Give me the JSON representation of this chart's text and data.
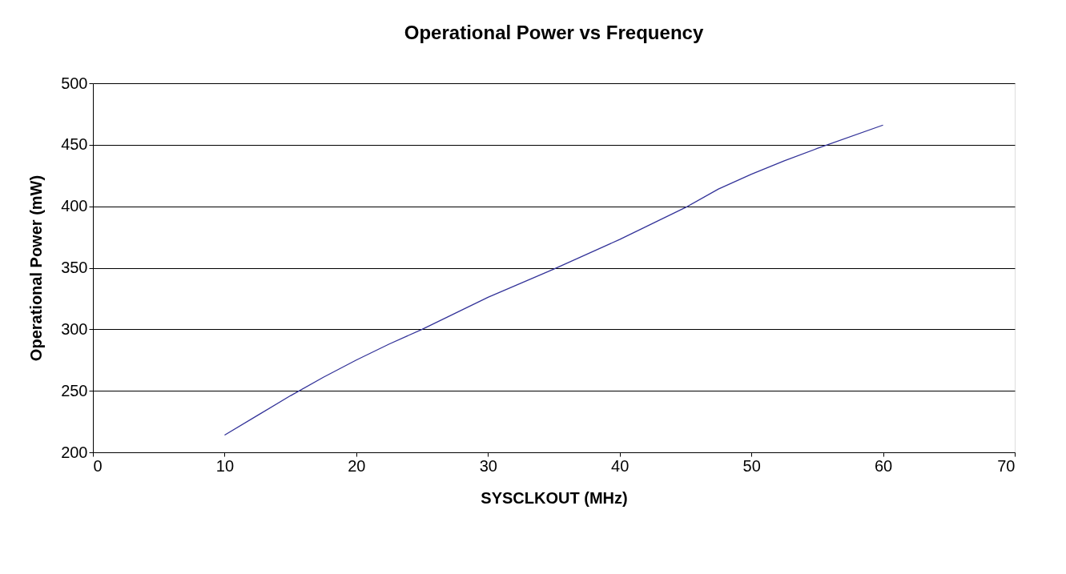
{
  "chart_data": {
    "type": "line",
    "title": "Operational Power vs Frequency",
    "xlabel": "SYSCLKOUT (MHz)",
    "ylabel": "Operational Power (mW)",
    "x": [
      10,
      12.5,
      15,
      17.5,
      20,
      22.5,
      25,
      30,
      35,
      37.5,
      40,
      45,
      47.5,
      50,
      52.5,
      55,
      60
    ],
    "series": [
      {
        "color": "#333399",
        "values": [
          214,
          230,
          246,
          261,
          275,
          288,
          300,
          326,
          349,
          361,
          373,
          399,
          414,
          426,
          437,
          447,
          466
        ]
      }
    ],
    "xlim": [
      0,
      70
    ],
    "xticks": [
      0,
      10,
      20,
      30,
      40,
      50,
      60,
      70
    ],
    "ylim": [
      200,
      500
    ],
    "yticks": [
      200,
      250,
      300,
      350,
      400,
      450,
      500
    ],
    "grid": "y",
    "legend": false,
    "marker": "none",
    "line_style": "solid"
  }
}
